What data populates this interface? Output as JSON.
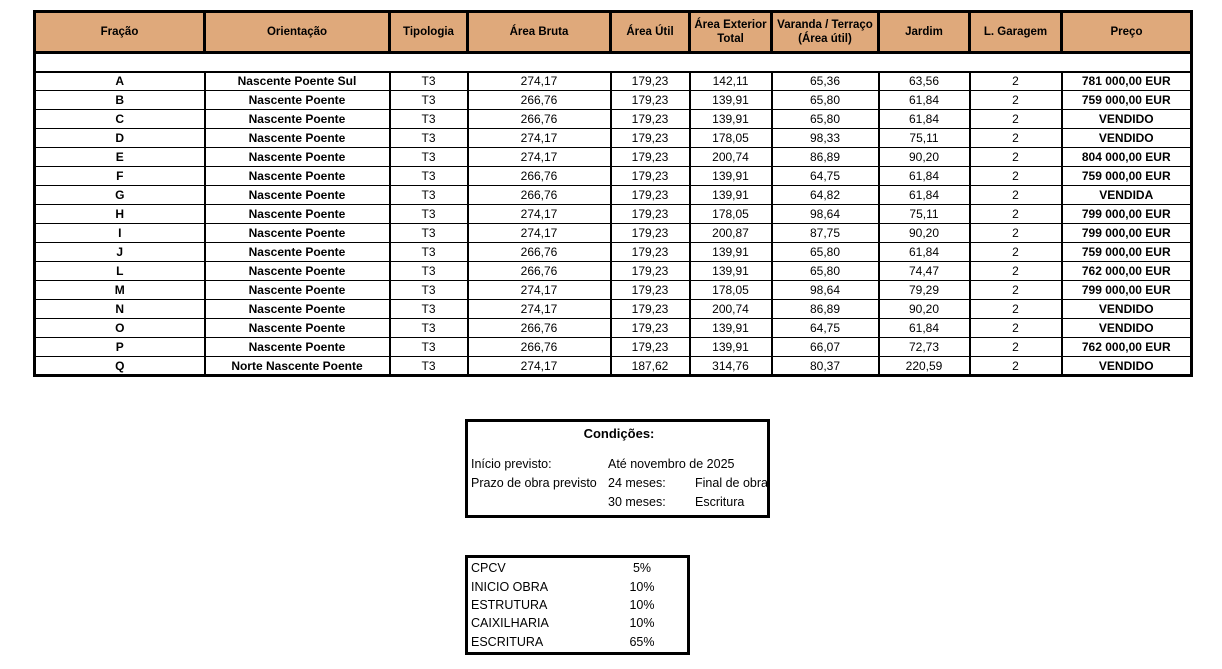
{
  "table": {
    "headers": [
      "Fração",
      "Orientação",
      "Tipologia",
      "Área Bruta",
      "Área Útil",
      "Área Exterior\nTotal",
      "Varanda / Terraço\n(Área útil)",
      "Jardim",
      "L. Garagem",
      "Preço"
    ],
    "rows": [
      {
        "fracao": "A",
        "orientacao": "Nascente Poente Sul",
        "tipologia": "T3",
        "area_bruta": "274,17",
        "area_util": "179,23",
        "area_exterior": "142,11",
        "varanda": "65,36",
        "jardim": "63,56",
        "garagem": "2",
        "preco": "781 000,00 EUR"
      },
      {
        "fracao": "B",
        "orientacao": "Nascente Poente",
        "tipologia": "T3",
        "area_bruta": "266,76",
        "area_util": "179,23",
        "area_exterior": "139,91",
        "varanda": "65,80",
        "jardim": "61,84",
        "garagem": "2",
        "preco": "759 000,00 EUR"
      },
      {
        "fracao": "C",
        "orientacao": "Nascente Poente",
        "tipologia": "T3",
        "area_bruta": "266,76",
        "area_util": "179,23",
        "area_exterior": "139,91",
        "varanda": "65,80",
        "jardim": "61,84",
        "garagem": "2",
        "preco": "VENDIDO"
      },
      {
        "fracao": "D",
        "orientacao": "Nascente Poente",
        "tipologia": "T3",
        "area_bruta": "274,17",
        "area_util": "179,23",
        "area_exterior": "178,05",
        "varanda": "98,33",
        "jardim": "75,11",
        "garagem": "2",
        "preco": "VENDIDO"
      },
      {
        "fracao": "E",
        "orientacao": "Nascente Poente",
        "tipologia": "T3",
        "area_bruta": "274,17",
        "area_util": "179,23",
        "area_exterior": "200,74",
        "varanda": "86,89",
        "jardim": "90,20",
        "garagem": "2",
        "preco": "804 000,00 EUR"
      },
      {
        "fracao": "F",
        "orientacao": "Nascente Poente",
        "tipologia": "T3",
        "area_bruta": "266,76",
        "area_util": "179,23",
        "area_exterior": "139,91",
        "varanda": "64,75",
        "jardim": "61,84",
        "garagem": "2",
        "preco": "759 000,00 EUR"
      },
      {
        "fracao": "G",
        "orientacao": "Nascente Poente",
        "tipologia": "T3",
        "area_bruta": "266,76",
        "area_util": "179,23",
        "area_exterior": "139,91",
        "varanda": "64,82",
        "jardim": "61,84",
        "garagem": "2",
        "preco": "VENDIDA"
      },
      {
        "fracao": "H",
        "orientacao": "Nascente Poente",
        "tipologia": "T3",
        "area_bruta": "274,17",
        "area_util": "179,23",
        "area_exterior": "178,05",
        "varanda": "98,64",
        "jardim": "75,11",
        "garagem": "2",
        "preco": "799 000,00 EUR"
      },
      {
        "fracao": "I",
        "orientacao": "Nascente Poente",
        "tipologia": "T3",
        "area_bruta": "274,17",
        "area_util": "179,23",
        "area_exterior": "200,87",
        "varanda": "87,75",
        "jardim": "90,20",
        "garagem": "2",
        "preco": "799 000,00 EUR"
      },
      {
        "fracao": "J",
        "orientacao": "Nascente Poente",
        "tipologia": "T3",
        "area_bruta": "266,76",
        "area_util": "179,23",
        "area_exterior": "139,91",
        "varanda": "65,80",
        "jardim": "61,84",
        "garagem": "2",
        "preco": "759 000,00 EUR"
      },
      {
        "fracao": "L",
        "orientacao": "Nascente Poente",
        "tipologia": "T3",
        "area_bruta": "266,76",
        "area_util": "179,23",
        "area_exterior": "139,91",
        "varanda": "65,80",
        "jardim": "74,47",
        "garagem": "2",
        "preco": "762 000,00 EUR"
      },
      {
        "fracao": "M",
        "orientacao": "Nascente Poente",
        "tipologia": "T3",
        "area_bruta": "274,17",
        "area_util": "179,23",
        "area_exterior": "178,05",
        "varanda": "98,64",
        "jardim": "79,29",
        "garagem": "2",
        "preco": "799 000,00 EUR"
      },
      {
        "fracao": "N",
        "orientacao": "Nascente Poente",
        "tipologia": "T3",
        "area_bruta": "274,17",
        "area_util": "179,23",
        "area_exterior": "200,74",
        "varanda": "86,89",
        "jardim": "90,20",
        "garagem": "2",
        "preco": "VENDIDO"
      },
      {
        "fracao": "O",
        "orientacao": "Nascente Poente",
        "tipologia": "T3",
        "area_bruta": "266,76",
        "area_util": "179,23",
        "area_exterior": "139,91",
        "varanda": "64,75",
        "jardim": "61,84",
        "garagem": "2",
        "preco": "VENDIDO"
      },
      {
        "fracao": "P",
        "orientacao": "Nascente Poente",
        "tipologia": "T3",
        "area_bruta": "266,76",
        "area_util": "179,23",
        "area_exterior": "139,91",
        "varanda": "66,07",
        "jardim": "72,73",
        "garagem": "2",
        "preco": "762 000,00 EUR"
      },
      {
        "fracao": "Q",
        "orientacao": "Norte Nascente Poente",
        "tipologia": "T3",
        "area_bruta": "274,17",
        "area_util": "187,62",
        "area_exterior": "314,76",
        "varanda": "80,37",
        "jardim": "220,59",
        "garagem": "2",
        "preco": "VENDIDO"
      }
    ]
  },
  "conditions_box": {
    "title": "Condições:",
    "rows": [
      {
        "label": "Início previsto:",
        "mid": "Até novembro de 2025",
        "right": ""
      },
      {
        "label": "Prazo de obra previsto",
        "mid": "24 meses:",
        "right": "Final de obra"
      },
      {
        "label": "",
        "mid": "30 meses:",
        "right": "Escritura"
      }
    ]
  },
  "payment_box": {
    "items": [
      {
        "label": "CPCV",
        "value": "5%"
      },
      {
        "label": "INICIO OBRA",
        "value": "10%"
      },
      {
        "label": "ESTRUTURA",
        "value": "10%"
      },
      {
        "label": "CAIXILHARIA",
        "value": "10%"
      },
      {
        "label": "ESCRITURA",
        "value": "65%"
      }
    ]
  },
  "colors": {
    "header_bg": "#dfa97b",
    "border": "#000000",
    "page_bg": "#ffffff"
  }
}
